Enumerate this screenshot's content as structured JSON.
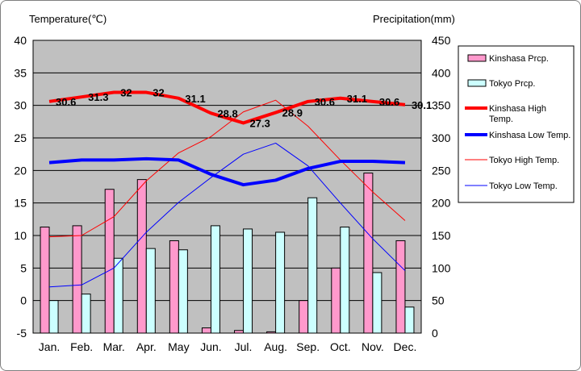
{
  "chart_data": {
    "type": "bar+line",
    "title": "",
    "left_axis_title": "Temperature(℃)",
    "right_axis_title": "Precipitation(mm)",
    "categories": [
      "Jan.",
      "Feb.",
      "Mar.",
      "Apr.",
      "May",
      "Jun.",
      "Jul.",
      "Aug.",
      "Sep.",
      "Oct.",
      "Nov.",
      "Dec."
    ],
    "ylim_left": [
      -5,
      40
    ],
    "yticks_left": [
      "-5",
      "0",
      "5",
      "10",
      "15",
      "20",
      "25",
      "30",
      "35",
      "40"
    ],
    "ylim_right": [
      0,
      450
    ],
    "yticks_right": [
      "0",
      "50",
      "100",
      "150",
      "200",
      "250",
      "300",
      "350",
      "400",
      "450"
    ],
    "grid": true,
    "legend_position": "right",
    "bar_series": [
      {
        "name": "Kinshasa Prcp.",
        "axis": "right",
        "color": "#ff99cc",
        "values": [
          163,
          165,
          221,
          236,
          142,
          8,
          4,
          2,
          50,
          100,
          246,
          142
        ]
      },
      {
        "name": "Tokyo Prcp.",
        "axis": "right",
        "color": "#ccffff",
        "values": [
          50,
          60,
          115,
          130,
          128,
          165,
          160,
          155,
          208,
          163,
          93,
          40
        ]
      }
    ],
    "line_series": [
      {
        "name": "Kinshasa High Temp.",
        "axis": "left",
        "color": "#ff0000",
        "width": 4,
        "values": [
          30.6,
          31.3,
          32,
          32,
          31.1,
          28.8,
          27.3,
          28.9,
          30.6,
          31.1,
          30.6,
          30.1
        ],
        "labels": [
          "30.6",
          "31.3",
          "32",
          "32",
          "31.1",
          "28.8",
          "27.3",
          "28.9",
          "30.6",
          "31.1",
          "30.6",
          "30.1"
        ]
      },
      {
        "name": "Kinshasa Low Temp.",
        "axis": "left",
        "color": "#0000ff",
        "width": 4,
        "values": [
          21.2,
          21.6,
          21.6,
          21.8,
          21.6,
          19.4,
          17.8,
          18.5,
          20.3,
          21.4,
          21.4,
          21.2
        ]
      },
      {
        "name": "Tokyo High Temp.",
        "axis": "left",
        "color": "#ff0000",
        "width": 1,
        "values": [
          9.8,
          10.0,
          12.9,
          18.4,
          22.7,
          25.2,
          29.0,
          30.8,
          26.8,
          21.6,
          16.7,
          12.3
        ]
      },
      {
        "name": "Tokyo Low Temp.",
        "axis": "left",
        "color": "#0000ff",
        "width": 1,
        "values": [
          2.1,
          2.4,
          5.0,
          10.5,
          15.1,
          18.9,
          22.5,
          24.2,
          20.7,
          15.0,
          9.5,
          4.6
        ]
      }
    ]
  }
}
